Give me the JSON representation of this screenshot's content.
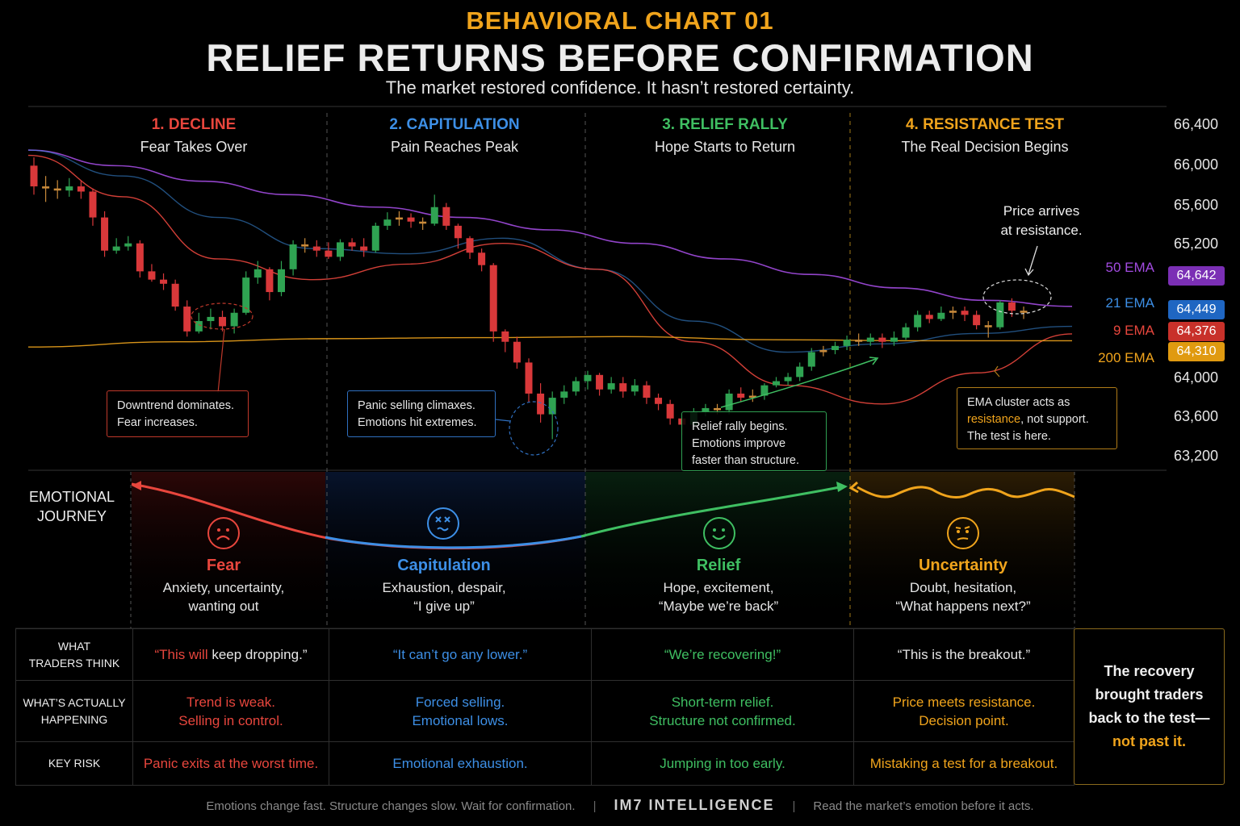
{
  "header": {
    "kicker": "BEHAVIORAL CHART 01",
    "title": "RELIEF RETURNS BEFORE CONFIRMATION",
    "subtitle": "The market restored confidence. It hasn’t restored certainty."
  },
  "phases": [
    {
      "num": "1. DECLINE",
      "sub": "Fear Takes Over",
      "color": "#e8463d"
    },
    {
      "num": "2. CAPITULATION",
      "sub": "Pain Reaches Peak",
      "color": "#3d8fe6"
    },
    {
      "num": "3. RELIEF RALLY",
      "sub": "Hope Starts to Return",
      "color": "#3fbf62"
    },
    {
      "num": "4. RESISTANCE TEST",
      "sub": "The Real Decision Begins",
      "color": "#f0a41c"
    }
  ],
  "chart_data": {
    "type": "candlestick",
    "y_ticks": [
      "66,400",
      "66,000",
      "65,600",
      "65,200",
      "64,000",
      "63,600",
      "63,200"
    ],
    "ylim": [
      63200,
      66400
    ],
    "candles": [
      [
        66000,
        65800,
        66080,
        65720
      ],
      [
        65800,
        65780,
        65900,
        65650
      ],
      [
        65780,
        65760,
        65860,
        65680
      ],
      [
        65760,
        65800,
        65880,
        65700
      ],
      [
        65800,
        65750,
        65860,
        65680
      ],
      [
        65750,
        65500,
        65780,
        65420
      ],
      [
        65500,
        65180,
        65560,
        65120
      ],
      [
        65180,
        65220,
        65300,
        65150
      ],
      [
        65220,
        65250,
        65320,
        65180
      ],
      [
        65250,
        64980,
        65280,
        64920
      ],
      [
        64980,
        64900,
        65050,
        64880
      ],
      [
        64900,
        64860,
        64960,
        64800
      ],
      [
        64860,
        64640,
        64900,
        64600
      ],
      [
        64640,
        64400,
        64700,
        64350
      ],
      [
        64400,
        64500,
        64580,
        64380
      ],
      [
        64500,
        64540,
        64620,
        64420
      ],
      [
        64540,
        64450,
        64600,
        64400
      ],
      [
        64450,
        64580,
        64620,
        64380
      ],
      [
        64580,
        64920,
        64980,
        64560
      ],
      [
        64920,
        65000,
        65080,
        64860
      ],
      [
        65000,
        64780,
        65020,
        64700
      ],
      [
        64780,
        65000,
        65080,
        64740
      ],
      [
        65000,
        65240,
        65280,
        64940
      ],
      [
        65240,
        65220,
        65300,
        65160
      ],
      [
        65220,
        65180,
        65280,
        65120
      ],
      [
        65180,
        65120,
        65260,
        65100
      ],
      [
        65120,
        65260,
        65290,
        65080
      ],
      [
        65260,
        65220,
        65300,
        65180
      ],
      [
        65220,
        65180,
        65300,
        65120
      ],
      [
        65180,
        65420,
        65450,
        65160
      ],
      [
        65420,
        65480,
        65550,
        65380
      ],
      [
        65480,
        65500,
        65560,
        65420
      ],
      [
        65500,
        65460,
        65540,
        65400
      ],
      [
        65460,
        65440,
        65500,
        65380
      ],
      [
        65440,
        65600,
        65720,
        65420
      ],
      [
        65600,
        65420,
        65640,
        65380
      ],
      [
        65420,
        65300,
        65440,
        65200
      ],
      [
        65300,
        65160,
        65320,
        65100
      ],
      [
        65160,
        65040,
        65200,
        64980
      ],
      [
        65040,
        64400,
        65060,
        64300
      ],
      [
        64400,
        64300,
        64420,
        64200
      ],
      [
        64300,
        64100,
        64350,
        64040
      ],
      [
        64100,
        63800,
        64140,
        63720
      ],
      [
        63800,
        63600,
        63900,
        63520
      ],
      [
        63600,
        63760,
        63820,
        63360
      ],
      [
        63760,
        63820,
        63880,
        63700
      ],
      [
        63820,
        63920,
        63960,
        63780
      ],
      [
        63920,
        63980,
        64020,
        63840
      ],
      [
        63980,
        63840,
        64000,
        63780
      ],
      [
        63840,
        63900,
        63960,
        63800
      ],
      [
        63900,
        63820,
        63960,
        63760
      ],
      [
        63820,
        63880,
        63940,
        63780
      ],
      [
        63880,
        63760,
        63920,
        63700
      ],
      [
        63760,
        63700,
        63800,
        63640
      ],
      [
        63700,
        63560,
        63740,
        63500
      ],
      [
        63560,
        63500,
        63600,
        63400
      ],
      [
        63500,
        63620,
        63660,
        63460
      ],
      [
        63620,
        63660,
        63700,
        63580
      ],
      [
        63660,
        63640,
        63700,
        63600
      ],
      [
        63640,
        63800,
        63840,
        63600
      ],
      [
        63800,
        63760,
        63860,
        63720
      ],
      [
        63760,
        63780,
        63840,
        63720
      ],
      [
        63780,
        63880,
        63900,
        63740
      ],
      [
        63880,
        63920,
        63960,
        63860
      ],
      [
        63920,
        63960,
        64000,
        63880
      ],
      [
        63960,
        64060,
        64100,
        63920
      ],
      [
        64060,
        64200,
        64240,
        64020
      ],
      [
        64200,
        64220,
        64260,
        64160
      ],
      [
        64220,
        64260,
        64300,
        64180
      ],
      [
        64260,
        64320,
        64360,
        64220
      ],
      [
        64320,
        64300,
        64380,
        64260
      ],
      [
        64300,
        64340,
        64380,
        64260
      ],
      [
        64340,
        64300,
        64380,
        64240
      ],
      [
        64300,
        64340,
        64400,
        64260
      ],
      [
        64340,
        64440,
        64480,
        64320
      ],
      [
        64440,
        64560,
        64600,
        64400
      ],
      [
        64560,
        64520,
        64600,
        64480
      ],
      [
        64520,
        64580,
        64640,
        64500
      ],
      [
        64580,
        64600,
        64640,
        64520
      ],
      [
        64600,
        64560,
        64640,
        64500
      ],
      [
        64560,
        64460,
        64600,
        64420
      ],
      [
        64460,
        64440,
        64500,
        64340
      ],
      [
        64440,
        64680,
        64700,
        64420
      ],
      [
        64680,
        64600,
        64720,
        64540
      ],
      [
        64600,
        64580,
        64640,
        64520
      ]
    ],
    "emas": [
      {
        "name": "50 EMA",
        "value": "64,642",
        "color": "#a24be0",
        "start": 66150,
        "points": [
          66150,
          66000,
          65850,
          65720,
          65600,
          65500,
          65380,
          65250,
          65100,
          64950,
          64820,
          64700,
          64642
        ]
      },
      {
        "name": "21 EMA",
        "value": "64,449",
        "color": "#3d8fe6",
        "start": 66150,
        "points": [
          66150,
          65900,
          65500,
          65200,
          65150,
          65300,
          65000,
          64500,
          64200,
          64280,
          64380,
          64449
        ]
      },
      {
        "name": "9 EMA",
        "value": "64,376",
        "color": "#e8463d",
        "start": 66100,
        "points": [
          66100,
          65700,
          65100,
          64900,
          65050,
          65250,
          65000,
          64300,
          63880,
          63700,
          64000,
          64376
        ]
      },
      {
        "name": "200 EMA",
        "value": "64,310",
        "color": "#f0a41c",
        "start": 64250,
        "points": [
          64250,
          64300,
          64330,
          64340,
          64350,
          64320,
          64310,
          64310
        ]
      }
    ]
  },
  "annotations": {
    "arrives": "Price arrives\nat resistance.",
    "notes": [
      {
        "text": "Downtrend dominates.\nFear increases.",
        "color": "#c0392b"
      },
      {
        "text": "Panic selling climaxes.\nEmotions hit extremes.",
        "color": "#2f6fbf"
      },
      {
        "text": "Relief rally begins.\nEmotions improve\nfaster than structure.",
        "color": "#2f9f52"
      },
      {
        "pre": "EMA cluster acts as\n",
        "hl": "resistance",
        "post": ", not support.\nThe test is here.",
        "color": "#b07c18",
        "hlcolor": "#f0a41c"
      }
    ]
  },
  "journey": {
    "label": "EMOTIONAL\nJOURNEY",
    "stages": [
      {
        "title": "Fear",
        "desc": "Anxiety, uncertainty,\nwanting out",
        "color": "#e8463d",
        "icon": "sad-face-icon"
      },
      {
        "title": "Capitulation",
        "desc": "Exhaustion, despair,\n“I give up”",
        "color": "#3d8fe6",
        "icon": "dizzy-face-icon"
      },
      {
        "title": "Relief",
        "desc": "Hope, excitement,\n“Maybe we’re back”",
        "color": "#3fbf62",
        "icon": "happy-face-icon"
      },
      {
        "title": "Uncertainty",
        "desc": "Doubt, hesitation,\n“What happens next?”",
        "color": "#f0a41c",
        "icon": "confused-face-icon"
      }
    ]
  },
  "table": {
    "rows": [
      {
        "label": "WHAT\nTRADERS THINK",
        "cells": [
          {
            "parts": [
              {
                "t": "“This will ",
                "c": "#e8463d"
              },
              {
                "t": "keep dropping.”",
                "c": "#e6e6e6"
              }
            ]
          },
          {
            "parts": [
              {
                "t": "“It can’t go any lower.”",
                "c": "#3d8fe6"
              }
            ]
          },
          {
            "parts": [
              {
                "t": "“We’re recovering!”",
                "c": "#3fbf62"
              }
            ]
          },
          {
            "parts": [
              {
                "t": "“This is the breakout.”",
                "c": "#e6e6e6"
              }
            ]
          }
        ]
      },
      {
        "label": "WHAT’S ACTUALLY\nHAPPENING",
        "cells": [
          {
            "parts": [
              {
                "t": "Trend is weak.\nSelling in control.",
                "c": "#e8463d"
              }
            ]
          },
          {
            "parts": [
              {
                "t": "Forced selling.\nEmotional lows.",
                "c": "#3d8fe6"
              }
            ]
          },
          {
            "parts": [
              {
                "t": "Short-term relief.\nStructure not confirmed.",
                "c": "#3fbf62"
              }
            ]
          },
          {
            "parts": [
              {
                "t": "Price meets resistance.\nDecision point.",
                "c": "#f0a41c"
              }
            ]
          }
        ]
      },
      {
        "label": "KEY RISK",
        "cells": [
          {
            "parts": [
              {
                "t": "Panic exits at the worst time.",
                "c": "#e8463d"
              }
            ]
          },
          {
            "parts": [
              {
                "t": "Emotional exhaustion.",
                "c": "#3d8fe6"
              }
            ]
          },
          {
            "parts": [
              {
                "t": "Jumping in too early.",
                "c": "#3fbf62"
              }
            ]
          },
          {
            "parts": [
              {
                "t": "Mistaking a test for a breakout.",
                "c": "#f0a41c"
              }
            ]
          }
        ]
      }
    ],
    "side": {
      "text": "The recovery\nbrought traders\nback to the test—",
      "hl": "not past it.",
      "hlcolor": "#f0a41c"
    }
  },
  "footer": {
    "left": "Emotions change fast. Structure changes slow. Wait for confirmation.",
    "brand": "IM7 INTELLIGENCE",
    "right": "Read the market’s emotion before it acts.",
    "sep": "|"
  }
}
